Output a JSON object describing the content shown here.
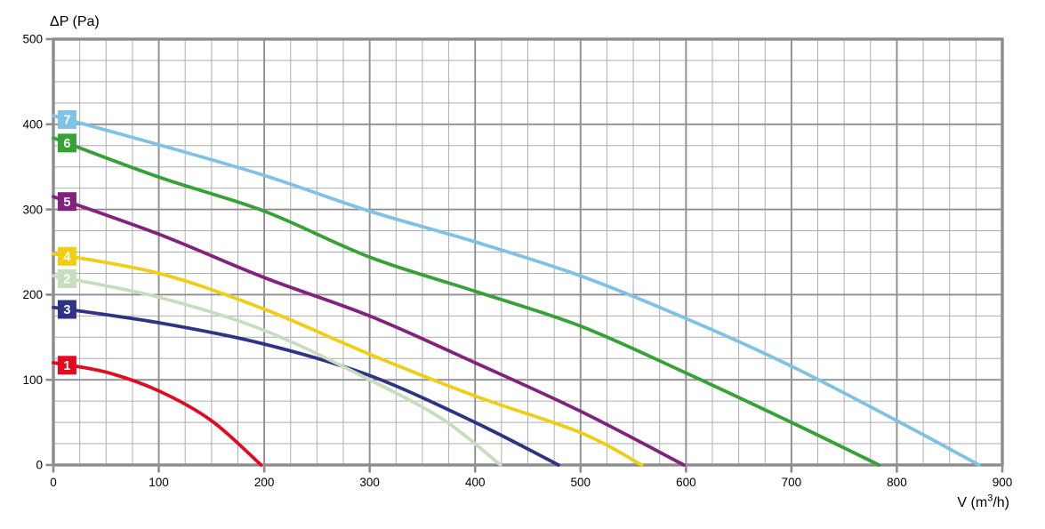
{
  "chart": {
    "background": "#ffffff",
    "frame_color": "#8c8c8c",
    "major_grid_color": "#8f8f8f",
    "minor_grid_color": "#aeaeae",
    "tick_label_color": "#000000",
    "curve_label_text_color": "#ffffff"
  },
  "chart_data": {
    "type": "line",
    "title": "",
    "ylabel": "ΔP (Pa)",
    "xlabel": "V (m³/h)",
    "xlabel_parts": {
      "pre": "V (m",
      "sup": "3",
      "post": "/h)"
    },
    "xlim": [
      0,
      900
    ],
    "ylim": [
      0,
      500
    ],
    "x_major_step": 100,
    "x_minor_step": 25,
    "y_major_step": 100,
    "y_minor_step": 25,
    "x_ticks": [
      0,
      100,
      200,
      300,
      400,
      500,
      600,
      700,
      800,
      900
    ],
    "y_ticks": [
      0,
      100,
      200,
      300,
      400,
      500
    ],
    "grid": "major and minor, both axes",
    "legend_position": "numbered boxes on curves at left edge",
    "curve_label_x": 13,
    "series": [
      {
        "name": "7",
        "color": "#7EC3E6",
        "points": [
          [
            0,
            410
          ],
          [
            100,
            376
          ],
          [
            200,
            340
          ],
          [
            300,
            298
          ],
          [
            400,
            262
          ],
          [
            500,
            222
          ],
          [
            600,
            172
          ],
          [
            700,
            116
          ],
          [
            800,
            52
          ],
          [
            878,
            0
          ]
        ]
      },
      {
        "name": "6",
        "color": "#36A135",
        "points": [
          [
            0,
            384
          ],
          [
            100,
            338
          ],
          [
            200,
            298
          ],
          [
            300,
            244
          ],
          [
            400,
            204
          ],
          [
            500,
            163
          ],
          [
            600,
            108
          ],
          [
            700,
            50
          ],
          [
            783,
            0
          ]
        ]
      },
      {
        "name": "5",
        "color": "#82217E",
        "points": [
          [
            0,
            315
          ],
          [
            100,
            271
          ],
          [
            200,
            220
          ],
          [
            300,
            175
          ],
          [
            400,
            120
          ],
          [
            500,
            63
          ],
          [
            598,
            0
          ]
        ]
      },
      {
        "name": "4",
        "color": "#F1CE15",
        "points": [
          [
            0,
            248
          ],
          [
            100,
            225
          ],
          [
            200,
            183
          ],
          [
            300,
            130
          ],
          [
            400,
            81
          ],
          [
            500,
            38
          ],
          [
            558,
            0
          ]
        ]
      },
      {
        "name": "3",
        "color": "#2F3387",
        "points": [
          [
            0,
            185
          ],
          [
            100,
            167
          ],
          [
            200,
            142
          ],
          [
            300,
            105
          ],
          [
            400,
            50
          ],
          [
            479,
            0
          ]
        ]
      },
      {
        "name": "2",
        "color": "#C6DEBE",
        "points": [
          [
            0,
            222
          ],
          [
            100,
            197
          ],
          [
            200,
            158
          ],
          [
            300,
            100
          ],
          [
            370,
            53
          ],
          [
            424,
            0
          ]
        ]
      },
      {
        "name": "1",
        "color": "#E30A20",
        "points": [
          [
            0,
            120
          ],
          [
            50,
            109
          ],
          [
            100,
            87
          ],
          [
            150,
            52
          ],
          [
            197,
            0
          ]
        ]
      }
    ]
  }
}
